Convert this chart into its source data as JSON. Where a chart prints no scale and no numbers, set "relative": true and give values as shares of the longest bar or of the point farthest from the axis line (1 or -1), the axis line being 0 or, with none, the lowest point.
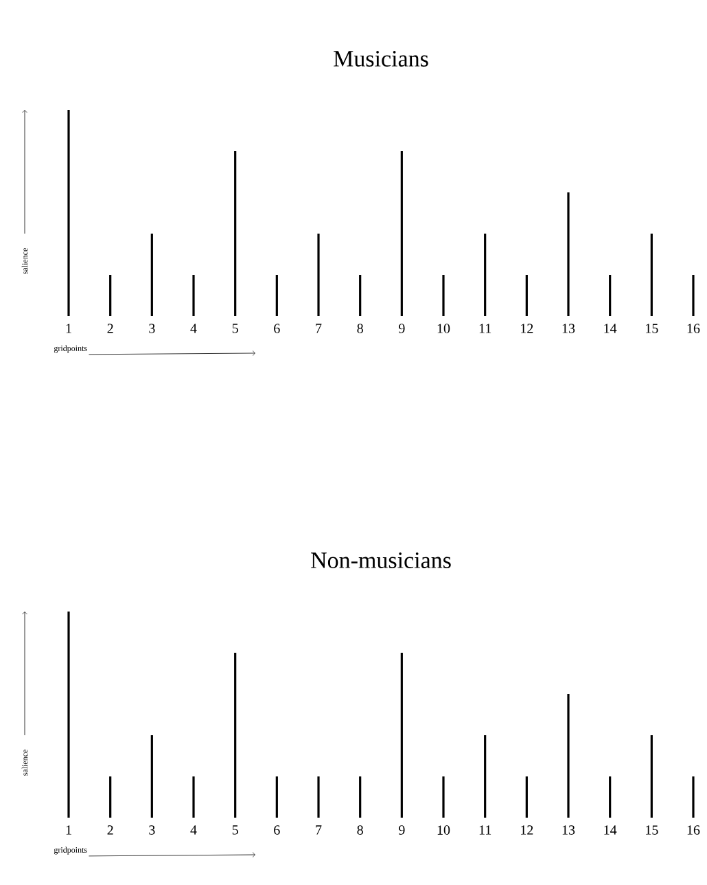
{
  "chart_data": [
    {
      "type": "bar",
      "title": "Musicians",
      "xlabel": "gridpoints",
      "ylabel": "salience",
      "relative": true,
      "tick_labels": "x",
      "color": "#000000",
      "categories": [
        "1",
        "2",
        "3",
        "4",
        "5",
        "6",
        "7",
        "8",
        "9",
        "10",
        "11",
        "12",
        "13",
        "14",
        "15",
        "16"
      ],
      "values": [
        1,
        0.2,
        0.4,
        0.2,
        0.8,
        0.2,
        0.4,
        0.2,
        0.8,
        0.2,
        0.4,
        0.2,
        0.6,
        0.2,
        0.4,
        0.2
      ]
    },
    {
      "type": "bar",
      "title": "Non-musicians",
      "xlabel": "gridpoints",
      "ylabel": "salience",
      "relative": true,
      "tick_labels": "x",
      "color": "#000000",
      "categories": [
        "1",
        "2",
        "3",
        "4",
        "5",
        "6",
        "7",
        "8",
        "9",
        "10",
        "11",
        "12",
        "13",
        "14",
        "15",
        "16"
      ],
      "values": [
        1,
        0.2,
        0.4,
        0.2,
        0.8,
        0.2,
        0.2,
        0.2,
        0.8,
        0.2,
        0.4,
        0.2,
        0.6,
        0.2,
        0.4,
        0.2
      ]
    }
  ]
}
